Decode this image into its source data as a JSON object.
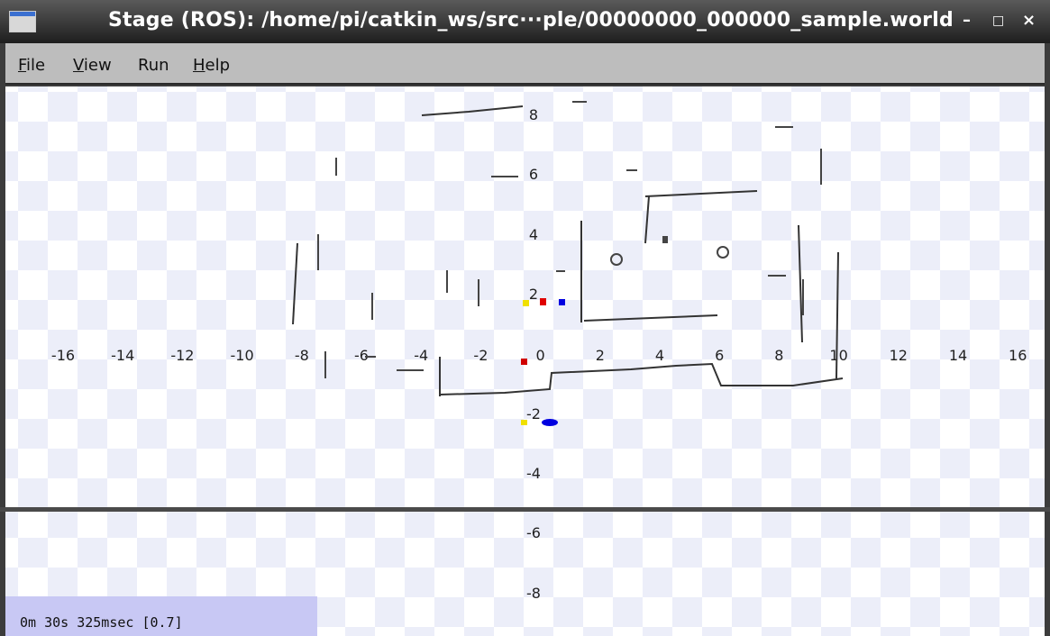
{
  "window": {
    "title": "Stage (ROS): /home/pi/catkin_ws/src···ple/00000000_000000_sample.world",
    "minimize_glyph": "–",
    "maximize_glyph": "□",
    "close_glyph": "×",
    "icon": "stage-app-icon"
  },
  "menu": {
    "file": {
      "hot": "F",
      "rest": "ile"
    },
    "view": {
      "hot": "V",
      "rest": "iew"
    },
    "run": {
      "hot": "",
      "rest": "Run"
    },
    "help": {
      "hot": "H",
      "rest": "elp"
    }
  },
  "axes": {
    "x_ticks": [
      "-16",
      "-14",
      "-12",
      "-10",
      "-8",
      "-6",
      "-4",
      "-2",
      "0",
      "2",
      "4",
      "6",
      "8",
      "10",
      "12",
      "14",
      "16"
    ],
    "y_ticks": [
      "8",
      "6",
      "4",
      "2",
      "-2",
      "-4",
      "-6",
      "-8"
    ]
  },
  "status": {
    "clock": "0m 30s 325msec [0.7]"
  }
}
